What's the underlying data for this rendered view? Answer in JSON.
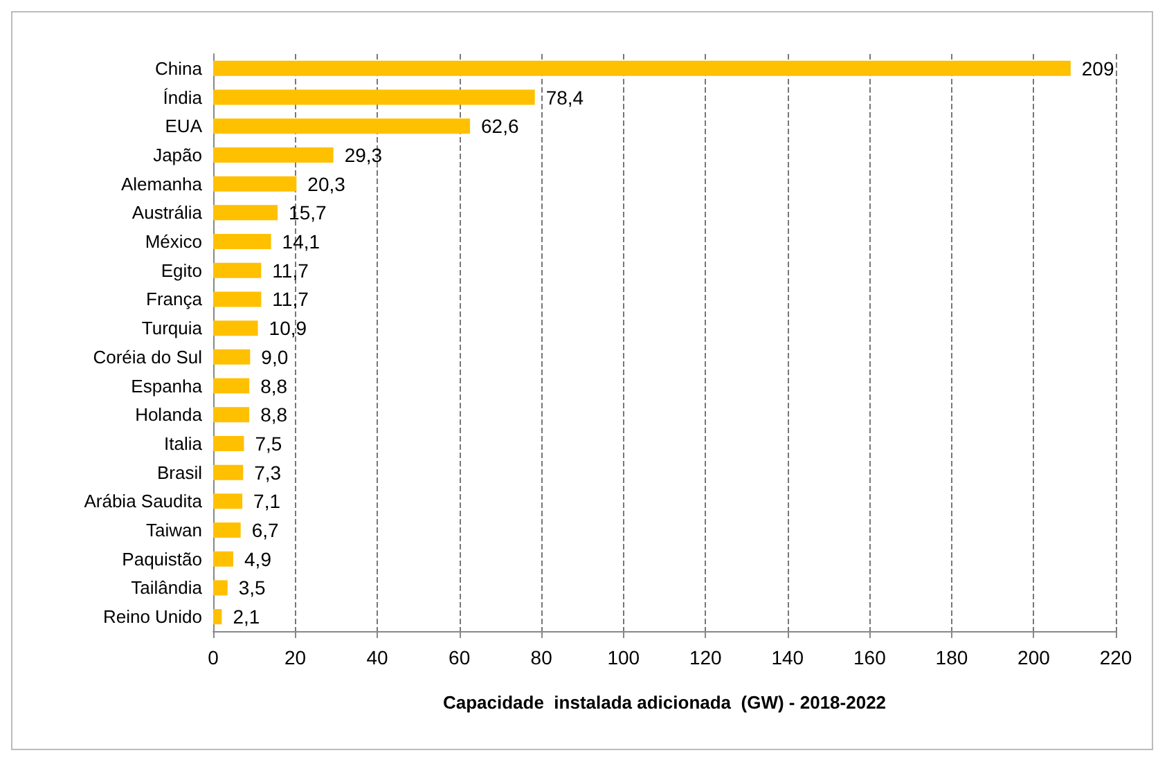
{
  "chart_data": {
    "type": "bar",
    "orientation": "horizontal",
    "xlabel": "Capacidade  instalada adicionada  (GW) - 2018-2022",
    "categories": [
      "China",
      "Índia",
      "EUA",
      "Japão",
      "Alemanha",
      "Austrália",
      "México",
      "Egito",
      "França",
      "Turquia",
      "Coréia do Sul",
      "Espanha",
      "Holanda",
      "Italia",
      "Brasil",
      "Arábia Saudita",
      "Taiwan",
      "Paquistão",
      "Tailândia",
      "Reino Unido"
    ],
    "values": [
      209,
      78.4,
      62.6,
      29.3,
      20.3,
      15.7,
      14.1,
      11.7,
      11.7,
      10.9,
      9.0,
      8.8,
      8.8,
      7.5,
      7.3,
      7.1,
      6.7,
      4.9,
      3.5,
      2.1
    ],
    "value_labels": [
      "209",
      "78,4",
      "62,6",
      "29,3",
      "20,3",
      "15,7",
      "14,1",
      "11,7",
      "11,7",
      "10,9",
      "9,0",
      "8,8",
      "8,8",
      "7,5",
      "7,3",
      "7,1",
      "6,7",
      "4,9",
      "3,5",
      "2,1"
    ],
    "color": "#ffc000",
    "xlim": [
      0,
      220
    ],
    "xticks": [
      0,
      20,
      40,
      60,
      80,
      100,
      120,
      140,
      160,
      180,
      200,
      220
    ],
    "grid": "x"
  }
}
